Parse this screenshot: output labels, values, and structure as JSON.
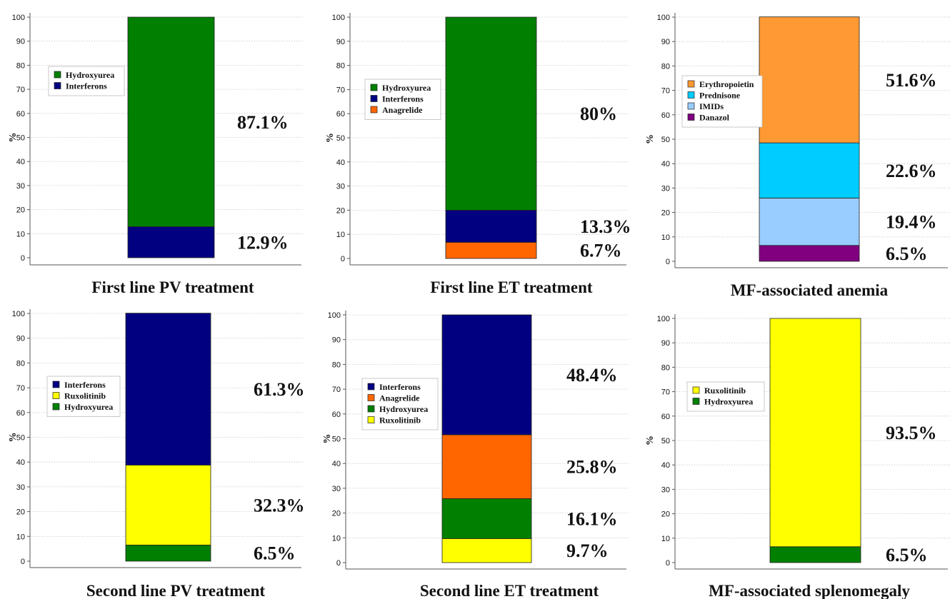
{
  "chart_data": [
    {
      "type": "bar",
      "title": "First line PV treatment",
      "ylabel": "%",
      "ylim": [
        0,
        100
      ],
      "yticks": [
        "0",
        "10",
        "20",
        "30",
        "40",
        "50",
        "60",
        "70",
        "80",
        "90",
        "100"
      ],
      "legend": "left",
      "series": [
        {
          "name": "Interferons",
          "value": 12.9,
          "label": "12.9%",
          "color": "#000080"
        },
        {
          "name": "Hydroxyurea",
          "value": 87.1,
          "label": "87.1%",
          "color": "#007f00"
        }
      ]
    },
    {
      "type": "bar",
      "title": "First line ET treatment",
      "ylabel": "%",
      "ylim": [
        0,
        100
      ],
      "yticks": [
        "0",
        "10",
        "20",
        "30",
        "40",
        "50",
        "60",
        "70",
        "80",
        "90",
        "100"
      ],
      "legend": "left",
      "series": [
        {
          "name": "Anagrelide",
          "value": 6.7,
          "label": "6.7%",
          "color": "#ff6600"
        },
        {
          "name": "Interferons",
          "value": 13.3,
          "label": "13.3%",
          "color": "#000080"
        },
        {
          "name": "Hydroxyurea",
          "value": 80,
          "label": "80%",
          "color": "#007f00"
        }
      ]
    },
    {
      "type": "bar",
      "title": "MF-associated anemia",
      "ylabel": "%",
      "ylim": [
        0,
        100
      ],
      "yticks": [
        "0",
        "10",
        "20",
        "30",
        "40",
        "50",
        "60",
        "70",
        "80",
        "90",
        "100"
      ],
      "legend": "left",
      "series": [
        {
          "name": "Danazol",
          "value": 6.5,
          "label": "6.5%",
          "color": "#800080"
        },
        {
          "name": "IMIDs",
          "value": 19.4,
          "label": "19.4%",
          "color": "#99ccff"
        },
        {
          "name": "Prednisone",
          "value": 22.6,
          "label": "22.6%",
          "color": "#00ccff"
        },
        {
          "name": "Erythropoietin",
          "value": 51.6,
          "label": "51.6%",
          "color": "#ff9933"
        }
      ]
    },
    {
      "type": "bar",
      "title": "Second line PV treatment",
      "ylabel": "%",
      "ylim": [
        0,
        100
      ],
      "yticks": [
        "0",
        "10",
        "20",
        "30",
        "40",
        "50",
        "60",
        "70",
        "80",
        "90",
        "100"
      ],
      "legend": "left",
      "series": [
        {
          "name": "Hydroxyurea",
          "value": 6.5,
          "label": "6.5%",
          "color": "#007f00"
        },
        {
          "name": "Ruxolitinib",
          "value": 32.3,
          "label": "32.3%",
          "color": "#ffff00"
        },
        {
          "name": "Interferons",
          "value": 61.3,
          "label": "61.3%",
          "color": "#000080"
        }
      ]
    },
    {
      "type": "bar",
      "title": "Second line ET treatment",
      "ylabel": "%",
      "ylim": [
        0,
        100
      ],
      "yticks": [
        "0",
        "10",
        "20",
        "30",
        "40",
        "50",
        "60",
        "70",
        "80",
        "90",
        "100"
      ],
      "legend": "left",
      "series": [
        {
          "name": "Ruxolitinib",
          "value": 9.7,
          "label": "9.7%",
          "color": "#ffff00"
        },
        {
          "name": "Hydroxyurea",
          "value": 16.1,
          "label": "16.1%",
          "color": "#007f00"
        },
        {
          "name": "Anagrelide",
          "value": 25.8,
          "label": "25.8%",
          "color": "#ff6600"
        },
        {
          "name": "Interferons",
          "value": 48.4,
          "label": "48.4%",
          "color": "#000080"
        }
      ]
    },
    {
      "type": "bar",
      "title": "MF-associated splenomegaly",
      "ylabel": "%",
      "ylim": [
        0,
        100
      ],
      "yticks": [
        "0",
        "10",
        "20",
        "30",
        "40",
        "50",
        "60",
        "70",
        "80",
        "90",
        "100"
      ],
      "legend": "left",
      "series": [
        {
          "name": "Hydroxyurea",
          "value": 6.5,
          "label": "6.5%",
          "color": "#007f00"
        },
        {
          "name": "Ruxolitinib",
          "value": 93.5,
          "label": "93.5%",
          "color": "#ffff00"
        }
      ]
    }
  ]
}
